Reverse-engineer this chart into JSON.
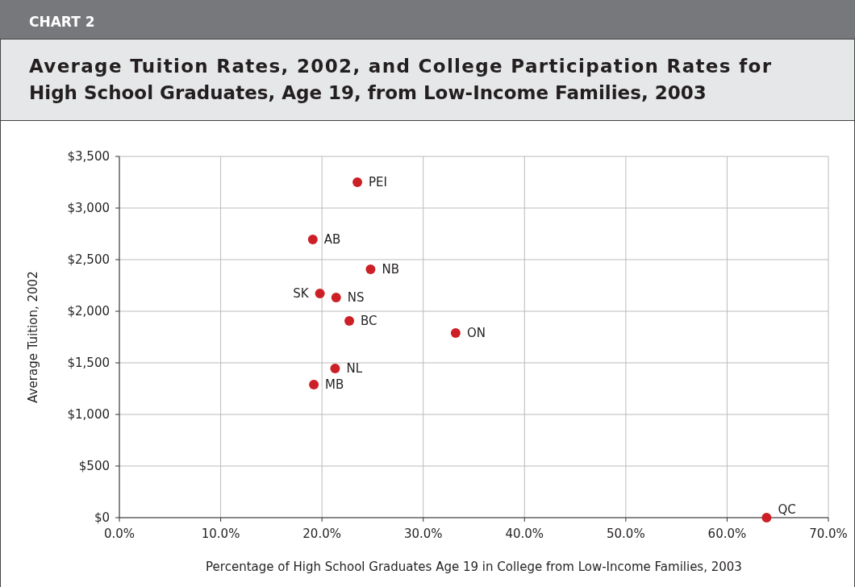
{
  "chart_data": {
    "type": "scatter",
    "title": "Average Tuition Rates, 2002, and College Participation Rates for High School Graduates, Age 19, from Low-Income Families, 2003",
    "xlabel": "Percentage of High School Graduates Age 19 in College from Low-Income Families, 2003",
    "ylabel": "Average Tuition, 2002",
    "x": [
      23.5,
      19.1,
      24.8,
      19.8,
      21.4,
      22.7,
      33.2,
      21.3,
      19.2,
      63.9
    ],
    "values": [
      3250,
      2695,
      2406,
      2172,
      2133,
      1906,
      1789,
      1445,
      1289,
      0
    ],
    "color": "#cc1f26",
    "marker": "circle",
    "grid": true,
    "xlim": [
      0,
      70
    ],
    "xticks": [
      {
        "value": 0,
        "label": "0.0%"
      },
      {
        "value": 10,
        "label": "10.0%"
      },
      {
        "value": 20,
        "label": "20.0%"
      },
      {
        "value": 30,
        "label": "30.0%"
      },
      {
        "value": 40,
        "label": "40.0%"
      },
      {
        "value": 50,
        "label": "50.0%"
      },
      {
        "value": 60,
        "label": "60.0%"
      },
      {
        "value": 70,
        "label": "70.0%"
      }
    ],
    "ylim": [
      0,
      3500
    ],
    "yticks": [
      {
        "value": 0,
        "label": "$0"
      },
      {
        "value": 500,
        "label": "$500"
      },
      {
        "value": 1000,
        "label": "$1,000"
      },
      {
        "value": 1500,
        "label": "$1,500"
      },
      {
        "value": 2000,
        "label": "$2,000"
      },
      {
        "value": 2500,
        "label": "$2,500"
      },
      {
        "value": 3000,
        "label": "$3,000"
      },
      {
        "value": 3500,
        "label": "$3,500"
      }
    ],
    "annotations": [
      "CHART 2",
      {
        "text": "PEI",
        "x": 23.5,
        "y": 3250
      },
      {
        "text": "AB",
        "x": 19.1,
        "y": 2695
      },
      {
        "text": "NB",
        "x": 24.8,
        "y": 2406
      },
      {
        "text": "SK",
        "x": 19.8,
        "y": 2172
      },
      {
        "text": "NS",
        "x": 21.4,
        "y": 2133
      },
      {
        "text": "BC",
        "x": 22.7,
        "y": 1906
      },
      {
        "text": "ON",
        "x": 33.2,
        "y": 1789
      },
      {
        "text": "NL",
        "x": 21.3,
        "y": 1445
      },
      {
        "text": "MB",
        "x": 19.2,
        "y": 1289
      },
      {
        "text": "QC",
        "x": 63.9,
        "y": 0
      }
    ]
  }
}
